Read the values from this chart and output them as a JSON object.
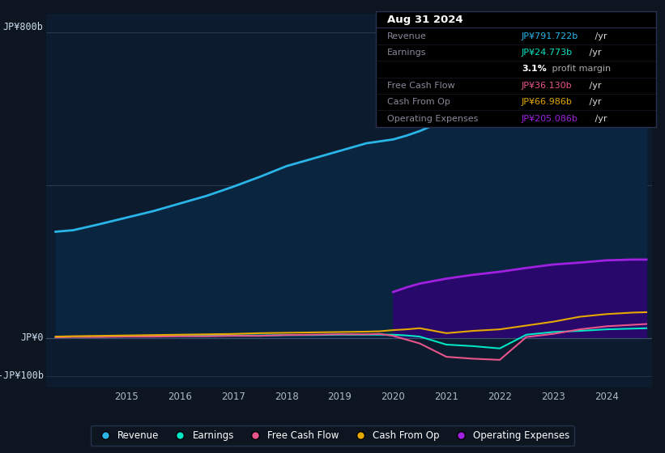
{
  "background_color": "#0d1520",
  "plot_bg_color": "#0d1b2e",
  "years": [
    2013.67,
    2014.0,
    2014.5,
    2015.0,
    2015.5,
    2016.0,
    2016.5,
    2017.0,
    2017.5,
    2018.0,
    2018.5,
    2019.0,
    2019.5,
    2019.75,
    2020.0,
    2020.25,
    2020.5,
    2021.0,
    2021.5,
    2022.0,
    2022.5,
    2023.0,
    2023.5,
    2024.0,
    2024.5,
    2024.75
  ],
  "revenue": [
    278,
    282,
    298,
    315,
    332,
    352,
    372,
    396,
    422,
    450,
    470,
    490,
    510,
    515,
    520,
    530,
    542,
    572,
    602,
    625,
    655,
    682,
    715,
    752,
    785,
    792
  ],
  "earnings": [
    2,
    3,
    3,
    4,
    4,
    5,
    5,
    6,
    6,
    7,
    7,
    8,
    8,
    8,
    8,
    6,
    3,
    -18,
    -22,
    -28,
    8,
    15,
    18,
    22,
    24,
    25
  ],
  "free_cash_flow": [
    1,
    2,
    2,
    3,
    3,
    4,
    4,
    5,
    5,
    7,
    8,
    9,
    9,
    10,
    5,
    -5,
    -15,
    -50,
    -55,
    -58,
    2,
    10,
    22,
    30,
    34,
    36
  ],
  "cash_from_op": [
    3,
    4,
    5,
    6,
    7,
    8,
    9,
    10,
    12,
    13,
    14,
    15,
    16,
    17,
    20,
    22,
    25,
    12,
    18,
    22,
    32,
    42,
    55,
    62,
    66,
    67
  ],
  "operating_expenses": [
    0,
    0,
    0,
    0,
    0,
    0,
    0,
    0,
    0,
    0,
    0,
    0,
    0,
    0,
    120,
    132,
    142,
    155,
    165,
    173,
    183,
    192,
    197,
    203,
    205,
    205
  ],
  "op_exp_start_year": 2019.75,
  "revenue_color": "#29b5e8",
  "revenue_fill_color": "#0a2540",
  "earnings_color": "#00e5c4",
  "free_cash_flow_color": "#e8558a",
  "cash_from_op_color": "#e5a800",
  "operating_expenses_color": "#a020e0",
  "operating_expenses_fill_color": "#28086b",
  "xmin": 2013.5,
  "xmax": 2024.85,
  "ymin": -130,
  "ymax": 850,
  "yticks": [
    800,
    0,
    -100
  ],
  "ytick_labels": [
    "JP¥800b",
    "JP¥0",
    "-JP¥100b"
  ],
  "xticks": [
    2015,
    2016,
    2017,
    2018,
    2019,
    2020,
    2021,
    2022,
    2023,
    2024
  ],
  "xtick_labels": [
    "2015",
    "2016",
    "2017",
    "2018",
    "2019",
    "2020",
    "2021",
    "2022",
    "2023",
    "2024"
  ],
  "tooltip_title": "Aug 31 2024",
  "tooltip_rows": [
    {
      "label": "Revenue",
      "value": "JP¥791.722b",
      "suffix": " /yr",
      "value_color": "#29b5e8"
    },
    {
      "label": "Earnings",
      "value": "JP¥24.773b",
      "suffix": " /yr",
      "value_color": "#00e5c4"
    },
    {
      "label": "",
      "value": "3.1%",
      "suffix": " profit margin",
      "value_color": "#ffffff",
      "bold_val": true
    },
    {
      "label": "Free Cash Flow",
      "value": "JP¥36.130b",
      "suffix": " /yr",
      "value_color": "#e8558a"
    },
    {
      "label": "Cash From Op",
      "value": "JP¥66.986b",
      "suffix": " /yr",
      "value_color": "#e5a800"
    },
    {
      "label": "Operating Expenses",
      "value": "JP¥205.086b",
      "suffix": " /yr",
      "value_color": "#a020e0"
    }
  ],
  "legend_items": [
    {
      "label": "Revenue",
      "color": "#29b5e8"
    },
    {
      "label": "Earnings",
      "color": "#00e5c4"
    },
    {
      "label": "Free Cash Flow",
      "color": "#e8558a"
    },
    {
      "label": "Cash From Op",
      "color": "#e5a800"
    },
    {
      "label": "Operating Expenses",
      "color": "#a020e0"
    }
  ]
}
